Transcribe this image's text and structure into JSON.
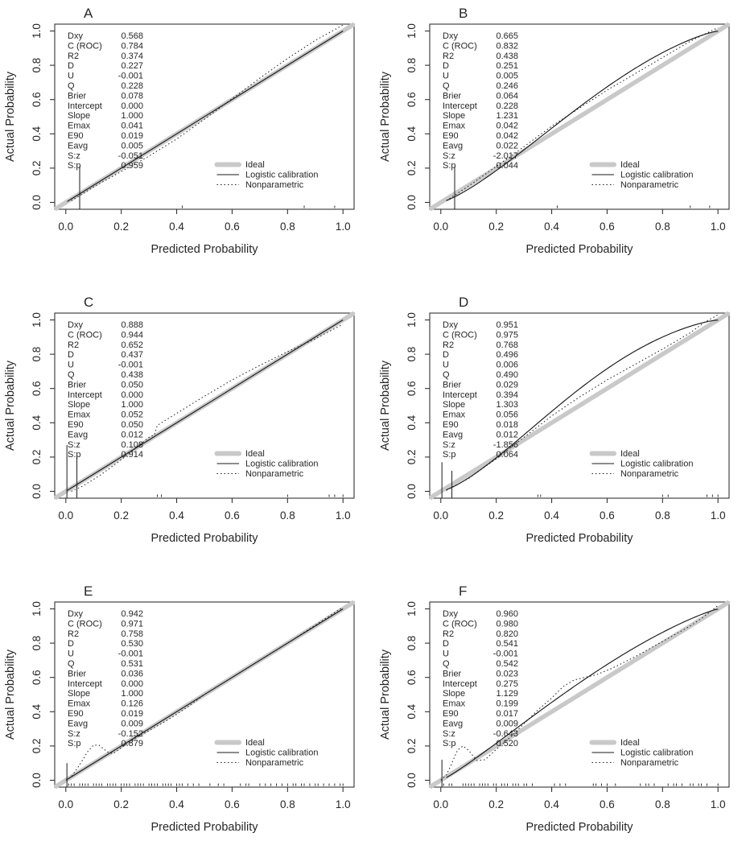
{
  "figure": {
    "type_description": "2x3 grid of rms-style logistic regression calibration plots",
    "xlabel": "Predicted Probability",
    "ylabel": "Actual Probability",
    "x_tick_labels": [
      "0.0",
      "0.2",
      "0.4",
      "0.6",
      "0.8",
      "1.0"
    ],
    "y_tick_labels": [
      "0.0",
      "0.2",
      "0.4",
      "0.6",
      "0.8",
      "1.0"
    ],
    "tick_values": [
      0,
      0.2,
      0.4,
      0.6,
      0.8,
      1.0
    ],
    "axis_range": [
      -0.04,
      1.04
    ],
    "legend": [
      "Ideal",
      "Logistic calibration",
      "Nonparametric"
    ],
    "stat_labels": [
      "Dxy",
      "C (ROC)",
      "R2",
      "D",
      "U",
      "Q",
      "Brier",
      "Intercept",
      "Slope",
      "Emax",
      "E90",
      "Eavg",
      "S:z",
      "S:p"
    ],
    "colors": {
      "ideal_line": "#c9c9c9",
      "black_line": "#1a1a1a",
      "text": "#262626",
      "background": "#ffffff",
      "box": "#333333"
    }
  },
  "chart_data": [
    {
      "type": "line",
      "panel_label": "A",
      "xlabel": "Predicted Probability",
      "ylabel": "Actual Probability",
      "xlim": [
        -0.04,
        1.04
      ],
      "ylim": [
        -0.04,
        1.04
      ],
      "legend_entries": [
        "Ideal",
        "Logistic calibration",
        "Nonparametric"
      ],
      "stats": [
        [
          "Dxy",
          "0.568"
        ],
        [
          "C (ROC)",
          "0.784"
        ],
        [
          "R2",
          "0.374"
        ],
        [
          "D",
          "0.227"
        ],
        [
          "U",
          "-0.001"
        ],
        [
          "Q",
          "0.228"
        ],
        [
          "Brier",
          "0.078"
        ],
        [
          "Intercept",
          "0.000"
        ],
        [
          "Slope",
          "1.000"
        ],
        [
          "Emax",
          "0.041"
        ],
        [
          "E90",
          "0.019"
        ],
        [
          "Eavg",
          "0.005"
        ],
        [
          "S:z",
          "-0.051"
        ],
        [
          "S:p",
          "0.959"
        ]
      ],
      "logistic_calibration": {
        "intercept": 0.0,
        "slope": 1.0
      },
      "nonparametric_points": [
        [
          0.02,
          0.01
        ],
        [
          0.1,
          0.09
        ],
        [
          0.2,
          0.18
        ],
        [
          0.3,
          0.27
        ],
        [
          0.4,
          0.37
        ],
        [
          0.5,
          0.485
        ],
        [
          0.6,
          0.605
        ],
        [
          0.7,
          0.725
        ],
        [
          0.8,
          0.84
        ],
        [
          0.9,
          0.945
        ],
        [
          1.0,
          1.035
        ]
      ],
      "spikes": [
        {
          "x": 0.05,
          "h": 0.21
        }
      ],
      "rug_x": [
        0.42,
        0.86,
        0.97
      ]
    },
    {
      "type": "line",
      "panel_label": "B",
      "xlabel": "Predicted Probability",
      "ylabel": "Actual Probability",
      "xlim": [
        -0.04,
        1.04
      ],
      "ylim": [
        -0.04,
        1.04
      ],
      "legend_entries": [
        "Ideal",
        "Logistic calibration",
        "Nonparametric"
      ],
      "stats": [
        [
          "Dxy",
          "0.665"
        ],
        [
          "C (ROC)",
          "0.832"
        ],
        [
          "R2",
          "0.438"
        ],
        [
          "D",
          "0.251"
        ],
        [
          "U",
          "0.005"
        ],
        [
          "Q",
          "0.246"
        ],
        [
          "Brier",
          "0.064"
        ],
        [
          "Intercept",
          "0.228"
        ],
        [
          "Slope",
          "1.231"
        ],
        [
          "Emax",
          "0.042"
        ],
        [
          "E90",
          "0.042"
        ],
        [
          "Eavg",
          "0.022"
        ],
        [
          "S:z",
          "-2.017"
        ],
        [
          "S:p",
          "0.044"
        ]
      ],
      "logistic_calibration": {
        "intercept": 0.228,
        "slope": 1.231
      },
      "nonparametric_points": [
        [
          0.02,
          0.01
        ],
        [
          0.1,
          0.095
        ],
        [
          0.2,
          0.21
        ],
        [
          0.3,
          0.325
        ],
        [
          0.4,
          0.445
        ],
        [
          0.5,
          0.55
        ],
        [
          0.6,
          0.655
        ],
        [
          0.7,
          0.75
        ],
        [
          0.8,
          0.845
        ],
        [
          0.9,
          0.94
        ],
        [
          1.0,
          1.02
        ]
      ],
      "spikes": [
        {
          "x": 0.05,
          "h": 0.21
        }
      ],
      "rug_x": [
        0.42,
        0.9,
        0.97
      ]
    },
    {
      "type": "line",
      "panel_label": "C",
      "xlabel": "Predicted Probability",
      "ylabel": "Actual Probability",
      "xlim": [
        -0.04,
        1.04
      ],
      "ylim": [
        -0.04,
        1.04
      ],
      "legend_entries": [
        "Ideal",
        "Logistic calibration",
        "Nonparametric"
      ],
      "stats": [
        [
          "Dxy",
          "0.888"
        ],
        [
          "C (ROC)",
          "0.944"
        ],
        [
          "R2",
          "0.652"
        ],
        [
          "D",
          "0.437"
        ],
        [
          "U",
          "-0.001"
        ],
        [
          "Q",
          "0.438"
        ],
        [
          "Brier",
          "0.050"
        ],
        [
          "Intercept",
          "0.000"
        ],
        [
          "Slope",
          "1.000"
        ],
        [
          "Emax",
          "0.052"
        ],
        [
          "E90",
          "0.050"
        ],
        [
          "Eavg",
          "0.012"
        ],
        [
          "S:z",
          "0.108"
        ],
        [
          "S:p",
          "0.914"
        ]
      ],
      "logistic_calibration": {
        "intercept": 0.0,
        "slope": 1.0
      },
      "nonparametric_points": [
        [
          0.02,
          0.0
        ],
        [
          0.06,
          0.03
        ],
        [
          0.12,
          0.09
        ],
        [
          0.18,
          0.16
        ],
        [
          0.24,
          0.235
        ],
        [
          0.3,
          0.315
        ],
        [
          0.32,
          0.33
        ],
        [
          0.33,
          0.385
        ],
        [
          0.4,
          0.455
        ],
        [
          0.5,
          0.555
        ],
        [
          0.6,
          0.65
        ],
        [
          0.7,
          0.735
        ],
        [
          0.8,
          0.815
        ],
        [
          0.9,
          0.89
        ],
        [
          1.0,
          0.975
        ]
      ],
      "spikes": [
        {
          "x": 0.004,
          "h": 0.27
        },
        {
          "x": 0.04,
          "h": 0.21
        }
      ],
      "rug_x": [
        0.33,
        0.345,
        0.8,
        0.95,
        0.97,
        1.0
      ]
    },
    {
      "type": "line",
      "panel_label": "D",
      "xlabel": "Predicted Probability",
      "ylabel": "Actual Probability",
      "xlim": [
        -0.04,
        1.04
      ],
      "ylim": [
        -0.04,
        1.04
      ],
      "legend_entries": [
        "Ideal",
        "Logistic calibration",
        "Nonparametric"
      ],
      "stats": [
        [
          "Dxy",
          "0.951"
        ],
        [
          "C (ROC)",
          "0.975"
        ],
        [
          "R2",
          "0.768"
        ],
        [
          "D",
          "0.496"
        ],
        [
          "U",
          "0.006"
        ],
        [
          "Q",
          "0.490"
        ],
        [
          "Brier",
          "0.029"
        ],
        [
          "Intercept",
          "0.394"
        ],
        [
          "Slope",
          "1.303"
        ],
        [
          "Emax",
          "0.056"
        ],
        [
          "E90",
          "0.018"
        ],
        [
          "Eavg",
          "0.012"
        ],
        [
          "S:z",
          "-1.856"
        ],
        [
          "S:p",
          "0.064"
        ]
      ],
      "logistic_calibration": {
        "intercept": 0.394,
        "slope": 1.303
      },
      "nonparametric_points": [
        [
          0.02,
          0.005
        ],
        [
          0.1,
          0.075
        ],
        [
          0.2,
          0.19
        ],
        [
          0.3,
          0.315
        ],
        [
          0.4,
          0.44
        ],
        [
          0.5,
          0.55
        ],
        [
          0.6,
          0.65
        ],
        [
          0.7,
          0.74
        ],
        [
          0.8,
          0.83
        ],
        [
          0.9,
          0.925
        ],
        [
          0.95,
          0.985
        ],
        [
          1.0,
          1.03
        ]
      ],
      "spikes": [
        {
          "x": 0.004,
          "h": 0.17
        },
        {
          "x": 0.04,
          "h": 0.12
        }
      ],
      "rug_x": [
        0.35,
        0.36,
        0.8,
        0.82,
        0.96,
        0.98,
        1.0
      ]
    },
    {
      "type": "line",
      "panel_label": "E",
      "xlabel": "Predicted Probability",
      "ylabel": "Actual Probability",
      "xlim": [
        -0.04,
        1.04
      ],
      "ylim": [
        -0.04,
        1.04
      ],
      "legend_entries": [
        "Ideal",
        "Logistic calibration",
        "Nonparametric"
      ],
      "stats": [
        [
          "Dxy",
          "0.942"
        ],
        [
          "C (ROC)",
          "0.971"
        ],
        [
          "R2",
          "0.758"
        ],
        [
          "D",
          "0.530"
        ],
        [
          "U",
          "-0.001"
        ],
        [
          "Q",
          "0.531"
        ],
        [
          "Brier",
          "0.036"
        ],
        [
          "Intercept",
          "0.000"
        ],
        [
          "Slope",
          "1.000"
        ],
        [
          "Emax",
          "0.126"
        ],
        [
          "E90",
          "0.019"
        ],
        [
          "Eavg",
          "0.009"
        ],
        [
          "S:z",
          "-0.152"
        ],
        [
          "S:p",
          "0.879"
        ]
      ],
      "logistic_calibration": {
        "intercept": 0.0,
        "slope": 1.0
      },
      "nonparametric_points": [
        [
          0.0,
          0.0
        ],
        [
          0.02,
          0.02
        ],
        [
          0.05,
          0.09
        ],
        [
          0.08,
          0.17
        ],
        [
          0.1,
          0.205
        ],
        [
          0.12,
          0.205
        ],
        [
          0.15,
          0.165
        ],
        [
          0.17,
          0.155
        ],
        [
          0.2,
          0.19
        ],
        [
          0.25,
          0.245
        ],
        [
          0.3,
          0.29
        ],
        [
          0.35,
          0.335
        ],
        [
          0.4,
          0.385
        ],
        [
          0.45,
          0.44
        ],
        [
          0.5,
          0.5
        ],
        [
          0.6,
          0.6
        ],
        [
          0.7,
          0.7
        ],
        [
          0.8,
          0.8
        ],
        [
          0.9,
          0.905
        ],
        [
          1.0,
          1.01
        ]
      ],
      "spikes": [
        {
          "x": 0.004,
          "h": 0.1
        }
      ],
      "rug_x": [
        0.01,
        0.02,
        0.03,
        0.05,
        0.06,
        0.07,
        0.08,
        0.1,
        0.11,
        0.12,
        0.13,
        0.15,
        0.16,
        0.17,
        0.18,
        0.2,
        0.21,
        0.22,
        0.23,
        0.25,
        0.26,
        0.27,
        0.28,
        0.3,
        0.31,
        0.32,
        0.33,
        0.35,
        0.36,
        0.37,
        0.38,
        0.4,
        0.41,
        0.42,
        0.44,
        0.46,
        0.48,
        0.52,
        0.55,
        0.57,
        0.63,
        0.65,
        0.66,
        0.7,
        0.72,
        0.74,
        0.76,
        0.78,
        0.8,
        0.82,
        0.83,
        0.85,
        0.86,
        0.88,
        0.9,
        0.91,
        0.93,
        0.95,
        0.97,
        0.99,
        1.0
      ]
    },
    {
      "type": "line",
      "panel_label": "F",
      "xlabel": "Predicted Probability",
      "ylabel": "Actual Probability",
      "xlim": [
        -0.04,
        1.04
      ],
      "ylim": [
        -0.04,
        1.04
      ],
      "legend_entries": [
        "Ideal",
        "Logistic calibration",
        "Nonparametric"
      ],
      "stats": [
        [
          "Dxy",
          "0.960"
        ],
        [
          "C (ROC)",
          "0.980"
        ],
        [
          "R2",
          "0.820"
        ],
        [
          "D",
          "0.541"
        ],
        [
          "U",
          "-0.001"
        ],
        [
          "Q",
          "0.542"
        ],
        [
          "Brier",
          "0.023"
        ],
        [
          "Intercept",
          "0.275"
        ],
        [
          "Slope",
          "1.129"
        ],
        [
          "Emax",
          "0.199"
        ],
        [
          "E90",
          "0.017"
        ],
        [
          "Eavg",
          "0.009"
        ],
        [
          "S:z",
          "-0.643"
        ],
        [
          "S:p",
          "0.520"
        ]
      ],
      "logistic_calibration": {
        "intercept": 0.275,
        "slope": 1.129
      },
      "nonparametric_points": [
        [
          0.0,
          0.0
        ],
        [
          0.02,
          0.03
        ],
        [
          0.04,
          0.1
        ],
        [
          0.06,
          0.175
        ],
        [
          0.08,
          0.2
        ],
        [
          0.1,
          0.175
        ],
        [
          0.13,
          0.115
        ],
        [
          0.16,
          0.12
        ],
        [
          0.2,
          0.18
        ],
        [
          0.25,
          0.25
        ],
        [
          0.3,
          0.33
        ],
        [
          0.35,
          0.41
        ],
        [
          0.4,
          0.48
        ],
        [
          0.44,
          0.545
        ],
        [
          0.48,
          0.585
        ],
        [
          0.52,
          0.6
        ],
        [
          0.56,
          0.615
        ],
        [
          0.62,
          0.655
        ],
        [
          0.7,
          0.72
        ],
        [
          0.8,
          0.81
        ],
        [
          0.9,
          0.9
        ],
        [
          0.95,
          0.955
        ],
        [
          1.0,
          1.02
        ]
      ],
      "spikes": [
        {
          "x": 0.004,
          "h": 0.12
        }
      ],
      "rug_x": [
        0.01,
        0.03,
        0.04,
        0.08,
        0.09,
        0.1,
        0.11,
        0.12,
        0.14,
        0.15,
        0.16,
        0.17,
        0.19,
        0.2,
        0.22,
        0.23,
        0.24,
        0.26,
        0.27,
        0.28,
        0.3,
        0.31,
        0.33,
        0.41,
        0.43,
        0.45,
        0.55,
        0.56,
        0.58,
        0.6,
        0.63,
        0.72,
        0.74,
        0.75,
        0.77,
        0.82,
        0.84,
        0.85,
        0.87,
        0.9,
        0.91,
        0.93,
        0.94,
        0.96,
        1.0
      ]
    }
  ]
}
